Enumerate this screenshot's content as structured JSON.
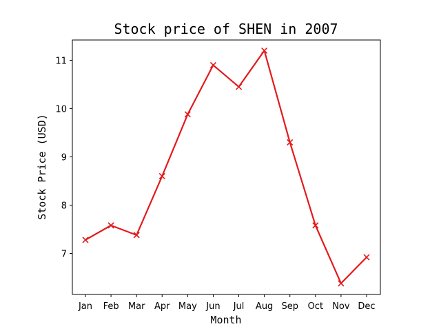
{
  "chart_data": {
    "type": "line",
    "title": "Stock price of SHEN in 2007",
    "xlabel": "Month",
    "ylabel": "Stock Price (USD)",
    "categories": [
      "Jan",
      "Feb",
      "Mar",
      "Apr",
      "May",
      "Jun",
      "Jul",
      "Aug",
      "Sep",
      "Oct",
      "Nov",
      "Dec"
    ],
    "series": [
      {
        "values": [
          7.28,
          7.58,
          7.38,
          8.6,
          9.88,
          10.9,
          10.45,
          11.2,
          9.3,
          7.58,
          6.38,
          6.92
        ],
        "color": "#e31a1c",
        "marker": "x"
      }
    ],
    "ylim": [
      6.15,
      11.42
    ],
    "yticks": [
      7,
      8,
      9,
      10,
      11
    ],
    "grid": false,
    "legend": "none"
  }
}
